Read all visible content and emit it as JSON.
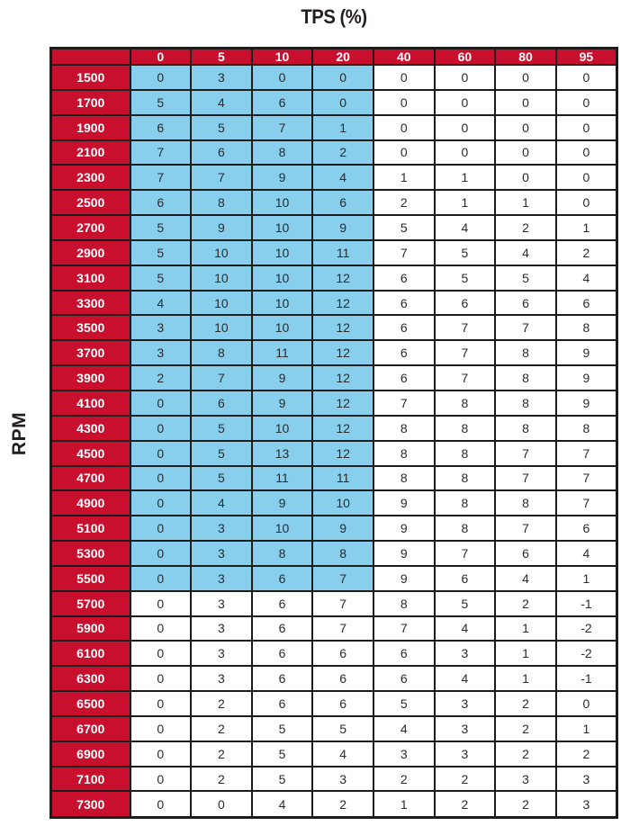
{
  "title": "TPS (%)",
  "y_axis_label": "RPM",
  "colors": {
    "header_bg": "#C8102E",
    "header_text": "#FFFFFF",
    "highlight_bg": "#87CFEC",
    "cell_bg": "#FFFFFF",
    "cell_text": "#2B2B2B",
    "border": "#1C1C1C"
  },
  "chart_data": {
    "type": "table",
    "title": "TPS (%)",
    "xlabel": "TPS (%)",
    "ylabel": "RPM",
    "columns": [
      "0",
      "5",
      "10",
      "20",
      "40",
      "60",
      "80",
      "95"
    ],
    "highlight": {
      "color": "#87CFEC",
      "tps_columns": [
        "0",
        "5",
        "10",
        "20"
      ],
      "column_count": 4,
      "rpm_range": [
        1500,
        5500
      ]
    },
    "rows": [
      {
        "rpm": "1500",
        "values": [
          0,
          3,
          0,
          0,
          0,
          0,
          0,
          0
        ],
        "highlighted": true
      },
      {
        "rpm": "1700",
        "values": [
          5,
          4,
          6,
          0,
          0,
          0,
          0,
          0
        ],
        "highlighted": true
      },
      {
        "rpm": "1900",
        "values": [
          6,
          5,
          7,
          1,
          0,
          0,
          0,
          0
        ],
        "highlighted": true
      },
      {
        "rpm": "2100",
        "values": [
          7,
          6,
          8,
          2,
          0,
          0,
          0,
          0
        ],
        "highlighted": true
      },
      {
        "rpm": "2300",
        "values": [
          7,
          7,
          9,
          4,
          1,
          1,
          0,
          0
        ],
        "highlighted": true
      },
      {
        "rpm": "2500",
        "values": [
          6,
          8,
          10,
          6,
          2,
          1,
          1,
          0
        ],
        "highlighted": true
      },
      {
        "rpm": "2700",
        "values": [
          5,
          9,
          10,
          9,
          5,
          4,
          2,
          1
        ],
        "highlighted": true
      },
      {
        "rpm": "2900",
        "values": [
          5,
          10,
          10,
          11,
          7,
          5,
          4,
          2
        ],
        "highlighted": true
      },
      {
        "rpm": "3100",
        "values": [
          5,
          10,
          10,
          12,
          6,
          5,
          5,
          4
        ],
        "highlighted": true
      },
      {
        "rpm": "3300",
        "values": [
          4,
          10,
          10,
          12,
          6,
          6,
          6,
          6
        ],
        "highlighted": true
      },
      {
        "rpm": "3500",
        "values": [
          3,
          10,
          10,
          12,
          6,
          7,
          7,
          8
        ],
        "highlighted": true
      },
      {
        "rpm": "3700",
        "values": [
          3,
          8,
          11,
          12,
          6,
          7,
          8,
          9
        ],
        "highlighted": true
      },
      {
        "rpm": "3900",
        "values": [
          2,
          7,
          9,
          12,
          6,
          7,
          8,
          9
        ],
        "highlighted": true
      },
      {
        "rpm": "4100",
        "values": [
          0,
          6,
          9,
          12,
          7,
          8,
          8,
          9
        ],
        "highlighted": true
      },
      {
        "rpm": "4300",
        "values": [
          0,
          5,
          10,
          12,
          8,
          8,
          8,
          8
        ],
        "highlighted": true
      },
      {
        "rpm": "4500",
        "values": [
          0,
          5,
          13,
          12,
          8,
          8,
          7,
          7
        ],
        "highlighted": true
      },
      {
        "rpm": "4700",
        "values": [
          0,
          5,
          11,
          11,
          8,
          8,
          7,
          7
        ],
        "highlighted": true
      },
      {
        "rpm": "4900",
        "values": [
          0,
          4,
          9,
          10,
          9,
          8,
          8,
          7
        ],
        "highlighted": true
      },
      {
        "rpm": "5100",
        "values": [
          0,
          3,
          10,
          9,
          9,
          8,
          7,
          6
        ],
        "highlighted": true
      },
      {
        "rpm": "5300",
        "values": [
          0,
          3,
          8,
          8,
          9,
          7,
          6,
          4
        ],
        "highlighted": true
      },
      {
        "rpm": "5500",
        "values": [
          0,
          3,
          6,
          7,
          9,
          6,
          4,
          1
        ],
        "highlighted": true
      },
      {
        "rpm": "5700",
        "values": [
          0,
          3,
          6,
          7,
          8,
          5,
          2,
          -1
        ],
        "highlighted": false
      },
      {
        "rpm": "5900",
        "values": [
          0,
          3,
          6,
          7,
          7,
          4,
          1,
          -2
        ],
        "highlighted": false
      },
      {
        "rpm": "6100",
        "values": [
          0,
          3,
          6,
          6,
          6,
          3,
          1,
          -2
        ],
        "highlighted": false
      },
      {
        "rpm": "6300",
        "values": [
          0,
          3,
          6,
          6,
          6,
          4,
          1,
          -1
        ],
        "highlighted": false
      },
      {
        "rpm": "6500",
        "values": [
          0,
          2,
          6,
          6,
          5,
          3,
          2,
          0
        ],
        "highlighted": false
      },
      {
        "rpm": "6700",
        "values": [
          0,
          2,
          5,
          5,
          4,
          3,
          2,
          1
        ],
        "highlighted": false
      },
      {
        "rpm": "6900",
        "values": [
          0,
          2,
          5,
          4,
          3,
          3,
          2,
          2
        ],
        "highlighted": false
      },
      {
        "rpm": "7100",
        "values": [
          0,
          2,
          5,
          3,
          2,
          2,
          3,
          3
        ],
        "highlighted": false
      },
      {
        "rpm": "7300",
        "values": [
          0,
          0,
          4,
          2,
          1,
          2,
          2,
          3
        ],
        "highlighted": false
      }
    ]
  }
}
